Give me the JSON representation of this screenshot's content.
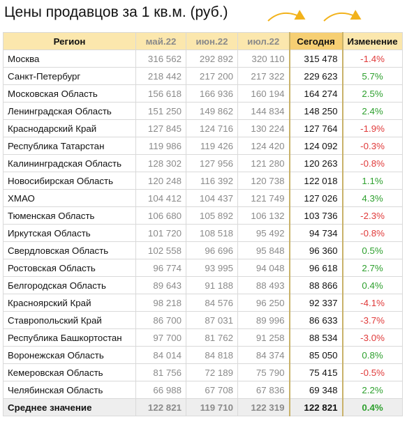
{
  "title": "Цены продавцов за 1 кв.м. (руб.)",
  "colors": {
    "header_bg": "#fbe7ad",
    "today_header_bg": "#f6cf73",
    "negative": "#e03a3a",
    "positive": "#2ea02e",
    "arrow": "#f2b21b"
  },
  "icons": [
    "curved-arrow-icon",
    "curved-arrow-icon"
  ],
  "table": {
    "headers": {
      "region": "Регион",
      "may": "май.22",
      "jun": "июн.22",
      "jul": "июл.22",
      "today": "Сегодня",
      "change": "Изменение"
    },
    "rows": [
      {
        "region": "Москва",
        "may": "316 562",
        "jun": "292 892",
        "jul": "320 110",
        "today": "315 478",
        "change": "-1.4%"
      },
      {
        "region": "Санкт-Петербург",
        "may": "218 442",
        "jun": "217 200",
        "jul": "217 322",
        "today": "229 623",
        "change": "5.7%"
      },
      {
        "region": "Московская Область",
        "may": "156 618",
        "jun": "166 936",
        "jul": "160 194",
        "today": "164 274",
        "change": "2.5%"
      },
      {
        "region": "Ленинградская Область",
        "may": "151 250",
        "jun": "149 862",
        "jul": "144 834",
        "today": "148 250",
        "change": "2.4%"
      },
      {
        "region": "Краснодарский Край",
        "may": "127 845",
        "jun": "124 716",
        "jul": "130 224",
        "today": "127 764",
        "change": "-1.9%"
      },
      {
        "region": "Республика Татарстан",
        "may": "119 986",
        "jun": "119 426",
        "jul": "124 420",
        "today": "124 092",
        "change": "-0.3%"
      },
      {
        "region": "Калининградская Область",
        "may": "128 302",
        "jun": "127 956",
        "jul": "121 280",
        "today": "120 263",
        "change": "-0.8%"
      },
      {
        "region": "Новосибирская Область",
        "may": "120 248",
        "jun": "116 392",
        "jul": "120 738",
        "today": "122 018",
        "change": "1.1%"
      },
      {
        "region": "ХМАО",
        "may": "104 412",
        "jun": "104 437",
        "jul": "121 749",
        "today": "127 026",
        "change": "4.3%"
      },
      {
        "region": "Тюменская Область",
        "may": "106 680",
        "jun": "105 892",
        "jul": "106 132",
        "today": "103 736",
        "change": "-2.3%"
      },
      {
        "region": "Иркутская Область",
        "may": "101 720",
        "jun": "108 518",
        "jul": "95 492",
        "today": "94 734",
        "change": "-0.8%"
      },
      {
        "region": "Свердловская Область",
        "may": "102 558",
        "jun": "96 696",
        "jul": "95 848",
        "today": "96 360",
        "change": "0.5%"
      },
      {
        "region": "Ростовская Область",
        "may": "96 774",
        "jun": "93 995",
        "jul": "94 048",
        "today": "96 618",
        "change": "2.7%"
      },
      {
        "region": "Белгородская Область",
        "may": "89 643",
        "jun": "91 188",
        "jul": "88 493",
        "today": "88 866",
        "change": "0.4%"
      },
      {
        "region": "Красноярский Край",
        "may": "98 218",
        "jun": "84 576",
        "jul": "96 250",
        "today": "92 337",
        "change": "-4.1%"
      },
      {
        "region": "Ставропольский Край",
        "may": "86 700",
        "jun": "87 031",
        "jul": "89 996",
        "today": "86 633",
        "change": "-3.7%"
      },
      {
        "region": "Республика Башкортостан",
        "may": "97 700",
        "jun": "81 762",
        "jul": "91 258",
        "today": "88 534",
        "change": "-3.0%"
      },
      {
        "region": "Воронежская Область",
        "may": "84 014",
        "jun": "84 818",
        "jul": "84 374",
        "today": "85 050",
        "change": "0.8%"
      },
      {
        "region": "Кемеровская Область",
        "may": "81 756",
        "jun": "72 189",
        "jul": "75 790",
        "today": "75 415",
        "change": "-0.5%"
      },
      {
        "region": "Челябинская Область",
        "may": "66 988",
        "jun": "67 708",
        "jul": "67 836",
        "today": "69 348",
        "change": "2.2%"
      }
    ],
    "average": {
      "region": "Среднее значение",
      "may": "122 821",
      "jun": "119 710",
      "jul": "122 319",
      "today": "122 821",
      "change": "0.4%"
    }
  }
}
